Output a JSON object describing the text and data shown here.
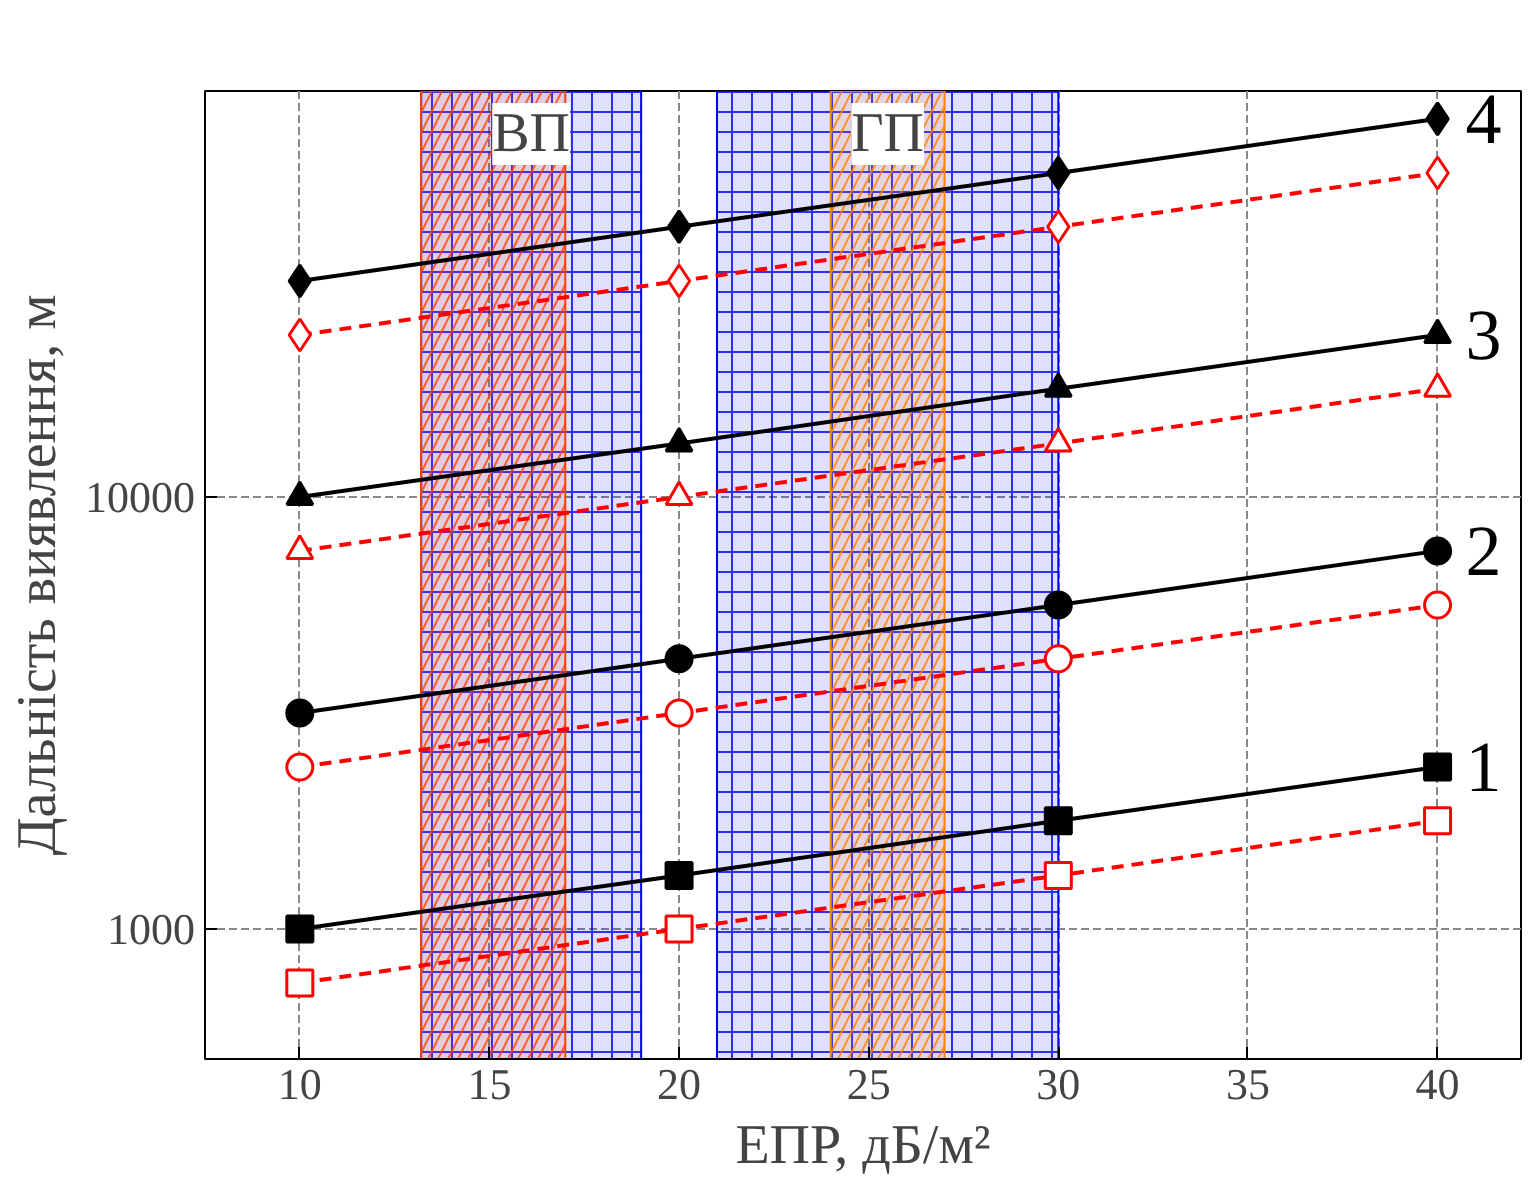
{
  "chart_data": {
    "type": "line",
    "xlabel": "ЕПР, дБ/м²",
    "ylabel": "Дальність виявлення, м",
    "x": [
      10,
      20,
      30,
      40
    ],
    "log": "y",
    "xlim": [
      7.5,
      42.2
    ],
    "ylim": [
      500,
      87000
    ],
    "xticks": [
      10,
      15,
      20,
      25,
      30,
      35,
      40
    ],
    "yticks": [
      1000,
      10000
    ],
    "grid": true,
    "series": [
      {
        "name": "1",
        "color": "#000000",
        "marker": "square",
        "line_style": "solid",
        "values": [
          1000,
          1330,
          1780,
          2370
        ]
      },
      {
        "color": "#ff0000",
        "marker": "square",
        "line_style": "dashed",
        "values": [
          750,
          1000,
          1330,
          1780
        ]
      },
      {
        "name": "2",
        "color": "#000000",
        "marker": "circle",
        "line_style": "solid",
        "values": [
          3160,
          4220,
          5620,
          7500
        ]
      },
      {
        "color": "#ff0000",
        "marker": "circle",
        "line_style": "dashed",
        "values": [
          2370,
          3160,
          4220,
          5620
        ]
      },
      {
        "name": "3",
        "color": "#000000",
        "marker": "triangle",
        "line_style": "solid",
        "values": [
          10000,
          13300,
          17800,
          23700
        ]
      },
      {
        "color": "#ff0000",
        "marker": "triangle",
        "line_style": "dashed",
        "values": [
          7500,
          10000,
          13300,
          17800
        ]
      },
      {
        "name": "4",
        "color": "#000000",
        "marker": "diamond",
        "line_style": "solid",
        "values": [
          31600,
          42200,
          56200,
          75000
        ]
      },
      {
        "color": "#ff0000",
        "marker": "diamond",
        "line_style": "dashed",
        "values": [
          23700,
          31600,
          42200,
          56200
        ]
      }
    ],
    "bands": [
      {
        "axis": "x",
        "from": 13.2,
        "to": 19,
        "label": "ВП",
        "color": "#0000ff"
      },
      {
        "axis": "x",
        "from": 13.2,
        "to": 17,
        "color": "#ff4000"
      },
      {
        "axis": "x",
        "from": 21,
        "to": 30,
        "color": "#0000ff"
      },
      {
        "axis": "x",
        "from": 24,
        "to": 27,
        "label": "ГП",
        "color": "#ff8000"
      }
    ]
  }
}
